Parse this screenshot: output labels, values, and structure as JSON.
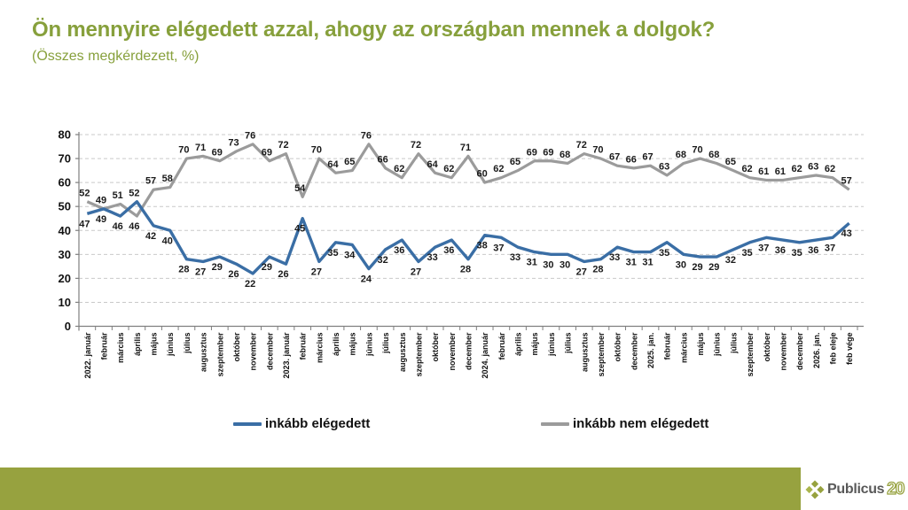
{
  "header": {
    "title": "Ön mennyire elégedett azzal, ahogy az országban mennek a dolgok?",
    "subtitle": "(Összes megkérdezett, %)"
  },
  "colors": {
    "accent_green": "#87A03C",
    "footer_green": "#97A23F",
    "satisfied_blue": "#3A6EA5",
    "dissatisfied_gray": "#9B9B9B",
    "label_black": "#1a1a1a",
    "gridline_gray": "#c9c9c9",
    "axis_gray": "#7f7f7f"
  },
  "chart_data": {
    "type": "line",
    "title": "Ön mennyire elégedett azzal, ahogy az országban mennek a dolgok? (Összes megkérdezett, %)",
    "xlabel": "",
    "ylabel": "",
    "ylim": [
      0,
      80
    ],
    "yticks": [
      0,
      10,
      20,
      30,
      40,
      50,
      60,
      70,
      80
    ],
    "grid": "horizontal-dashed",
    "legend_position": "bottom",
    "data_labels": true,
    "categories": [
      "2022. január",
      "február",
      "március",
      "április",
      "május",
      "június",
      "július",
      "augusztus",
      "szeptember",
      "október",
      "november",
      "december",
      "2023. január",
      "február",
      "március",
      "április",
      "május",
      "június",
      "július",
      "augusztus",
      "szeptember",
      "október",
      "november",
      "december",
      "2024. január",
      "február",
      "április",
      "május",
      "június",
      "július",
      "augusztus",
      "szeptember",
      "október",
      "december",
      "2025. jan.",
      "február",
      "március",
      "május",
      "június",
      "július",
      "szeptember",
      "október",
      "november",
      "december",
      "2026. jan.",
      "feb eleje",
      "feb vége"
    ],
    "series": [
      {
        "name": "inkább elégedett",
        "color": "#3A6EA5",
        "values": [
          47,
          49,
          46,
          52,
          42,
          40,
          28,
          27,
          29,
          26,
          22,
          29,
          26,
          45,
          27,
          35,
          34,
          24,
          32,
          36,
          27,
          33,
          36,
          28,
          38,
          37,
          33,
          31,
          30,
          30,
          27,
          28,
          33,
          31,
          31,
          35,
          30,
          29,
          29,
          32,
          35,
          37,
          36,
          35,
          36,
          37,
          43
        ]
      },
      {
        "name": "inkább nem elégedett",
        "color": "#9B9B9B",
        "values": [
          52,
          49,
          51,
          46,
          57,
          58,
          70,
          71,
          69,
          73,
          76,
          69,
          72,
          54,
          70,
          64,
          65,
          76,
          66,
          62,
          72,
          64,
          62,
          71,
          60,
          62,
          65,
          69,
          69,
          68,
          72,
          70,
          67,
          66,
          67,
          63,
          68,
          70,
          68,
          65,
          62,
          61,
          61,
          62,
          63,
          62,
          57
        ]
      }
    ]
  },
  "legend": {
    "satisfied": "inkább elégedett",
    "dissatisfied": "inkább nem elégedett"
  },
  "footer": {
    "brand": "Publicus",
    "badge": "20"
  }
}
